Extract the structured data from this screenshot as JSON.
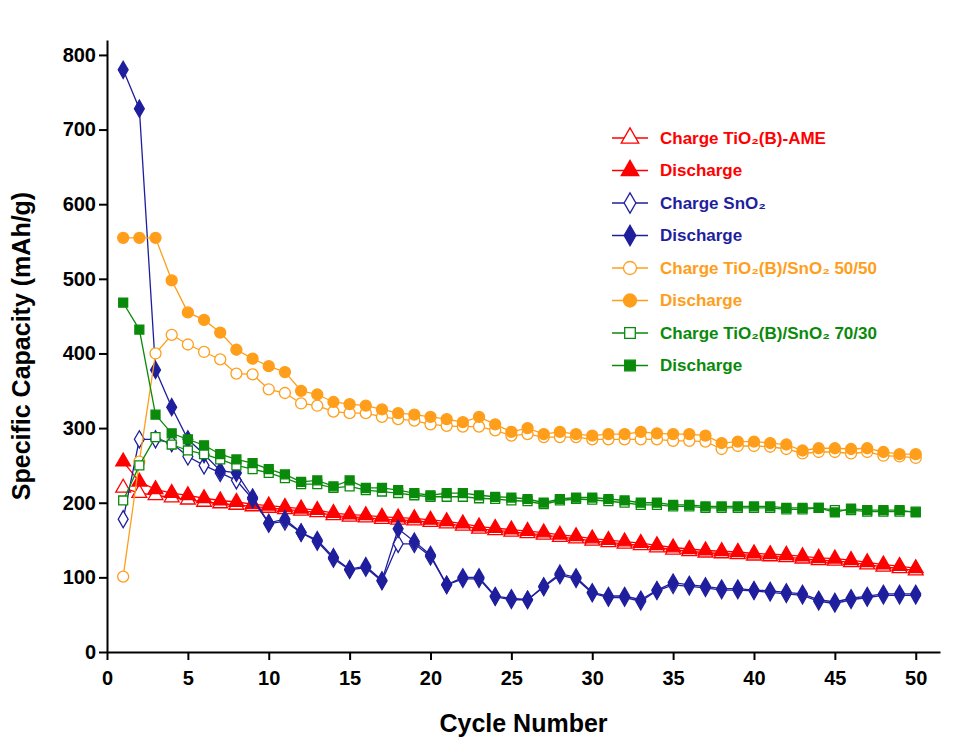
{
  "chart_data": {
    "type": "line",
    "x_label": "Cycle Number",
    "y_label": "Specific Capacity (mAh/g)",
    "x": [
      1,
      2,
      3,
      4,
      5,
      6,
      7,
      8,
      9,
      10,
      11,
      12,
      13,
      14,
      15,
      16,
      17,
      18,
      19,
      20,
      21,
      22,
      23,
      24,
      25,
      26,
      27,
      28,
      29,
      30,
      31,
      32,
      33,
      34,
      35,
      36,
      37,
      38,
      39,
      40,
      41,
      42,
      43,
      44,
      45,
      46,
      47,
      48,
      49,
      50
    ],
    "xlim": [
      0,
      51.5
    ],
    "xticks": [
      0,
      5,
      10,
      15,
      20,
      25,
      30,
      35,
      40,
      45,
      50
    ],
    "ylim": [
      0,
      820
    ],
    "yticks": [
      0,
      100,
      200,
      300,
      400,
      500,
      600,
      700,
      800
    ],
    "grid": false,
    "legend": "upper right",
    "series": [
      {
        "name": "Charge TiO₂(B)-AME",
        "color": "#ff0000",
        "marker": "triangle-open",
        "line_style": "solid",
        "values": [
          220,
          213,
          210,
          207,
          204,
          201,
          199,
          197,
          195,
          193,
          191,
          189,
          187,
          183,
          181,
          180,
          178,
          177,
          176,
          174,
          172,
          169,
          165,
          163,
          161,
          159,
          157,
          154,
          152,
          149,
          147,
          145,
          143,
          140,
          137,
          135,
          133,
          132,
          131,
          129,
          128,
          127,
          125,
          123,
          122,
          120,
          117,
          114,
          112,
          109
        ]
      },
      {
        "name": "Discharge",
        "color": "#ff0000",
        "marker": "triangle",
        "line_style": "solid",
        "values": [
          255,
          228,
          218,
          213,
          210,
          206,
          203,
          201,
          198,
          196,
          194,
          192,
          190,
          186,
          184,
          183,
          181,
          180,
          179,
          177,
          175,
          172,
          168,
          166,
          164,
          162,
          160,
          157,
          155,
          152,
          150,
          148,
          146,
          143,
          140,
          138,
          136,
          135,
          134,
          132,
          131,
          130,
          128,
          126,
          125,
          123,
          120,
          117,
          115,
          112
        ]
      },
      {
        "name": "Charge SnO₂",
        "color": "#1f1f9e",
        "marker": "diamond-open",
        "line_style": "solid",
        "values": [
          178,
          285,
          285,
          280,
          262,
          250,
          240,
          230,
          205,
          172,
          175,
          160,
          148,
          125,
          110,
          113,
          95,
          145,
          145,
          128,
          90,
          98,
          98,
          74,
          70,
          70,
          87,
          103,
          98,
          79,
          73,
          73,
          68,
          82,
          90,
          88,
          86,
          83,
          83,
          82,
          80,
          78,
          76,
          68,
          65,
          70,
          73,
          76,
          76,
          76
        ]
      },
      {
        "name": "Discharge",
        "color": "#1f1f9e",
        "marker": "diamond",
        "line_style": "solid",
        "values": [
          780,
          728,
          378,
          328,
          285,
          265,
          243,
          240,
          207,
          173,
          178,
          160,
          150,
          127,
          111,
          115,
          96,
          165,
          148,
          130,
          90,
          100,
          100,
          75,
          72,
          70,
          88,
          105,
          100,
          80,
          75,
          75,
          70,
          83,
          93,
          90,
          88,
          85,
          85,
          83,
          82,
          80,
          78,
          70,
          67,
          72,
          75,
          78,
          78,
          78
        ]
      },
      {
        "name": "Charge TiO₂(B)/SnO₂ 50/50",
        "color": "#ff9e1b",
        "marker": "circle-open",
        "line_style": "solid",
        "values": [
          101,
          255,
          400,
          425,
          412,
          402,
          392,
          373,
          372,
          352,
          347,
          333,
          330,
          322,
          320,
          320,
          315,
          312,
          310,
          305,
          303,
          302,
          302,
          297,
          290,
          292,
          288,
          288,
          288,
          285,
          285,
          285,
          285,
          285,
          283,
          283,
          282,
          272,
          276,
          276,
          275,
          272,
          266,
          268,
          268,
          266,
          268,
          263,
          262,
          260
        ]
      },
      {
        "name": "Discharge",
        "color": "#ff9e1b",
        "marker": "circle",
        "line_style": "solid",
        "values": [
          555,
          555,
          555,
          498,
          455,
          445,
          428,
          405,
          393,
          383,
          375,
          350,
          345,
          335,
          332,
          330,
          325,
          320,
          318,
          315,
          312,
          308,
          315,
          305,
          295,
          300,
          292,
          295,
          292,
          290,
          292,
          292,
          295,
          293,
          292,
          292,
          290,
          280,
          282,
          282,
          280,
          278,
          270,
          273,
          273,
          272,
          273,
          268,
          265,
          265
        ]
      },
      {
        "name": "Charge TiO₂(B)/SnO₂ 70/30",
        "color": "#0a8a0a",
        "marker": "square-open",
        "line_style": "solid",
        "values": [
          203,
          250,
          288,
          278,
          270,
          265,
          258,
          250,
          245,
          240,
          233,
          225,
          225,
          220,
          222,
          217,
          215,
          213,
          210,
          208,
          208,
          208,
          206,
          205,
          203,
          202,
          198,
          203,
          205,
          204,
          202,
          200,
          197,
          197,
          195,
          195,
          193,
          193,
          193,
          193,
          193,
          191,
          191,
          193,
          190,
          190,
          188,
          188,
          188,
          188
        ]
      },
      {
        "name": "Discharge",
        "color": "#0a8a0a",
        "marker": "square",
        "line_style": "solid",
        "values": [
          468,
          432,
          318,
          293,
          285,
          277,
          265,
          258,
          253,
          245,
          238,
          228,
          230,
          222,
          230,
          220,
          220,
          217,
          213,
          210,
          213,
          213,
          210,
          208,
          207,
          205,
          200,
          205,
          207,
          207,
          205,
          203,
          200,
          200,
          197,
          197,
          195,
          195,
          195,
          195,
          195,
          193,
          193,
          193,
          187,
          192,
          190,
          190,
          190,
          187
        ]
      }
    ]
  }
}
